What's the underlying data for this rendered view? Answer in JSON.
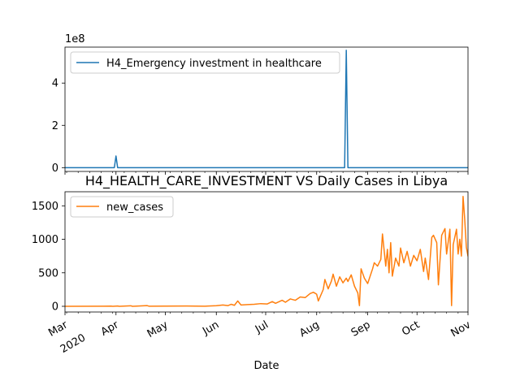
{
  "chart_data": [
    {
      "type": "line",
      "title": "",
      "xlabel": "",
      "ylabel": "",
      "offset_text": "1e8",
      "ylim": [
        -18000000,
        570000000
      ],
      "yticks": [
        0,
        2,
        4
      ],
      "ytick_labels": [
        "0",
        "2",
        "4"
      ],
      "legend": {
        "position": "top-left"
      },
      "grid": false,
      "series": [
        {
          "name": "H4_Emergency investment in healthcare",
          "color": "#1f77b4",
          "points": [
            [
              "2020-03-01",
              0
            ],
            [
              "2020-03-31",
              0
            ],
            [
              "2020-04-01",
              55000000
            ],
            [
              "2020-04-02",
              0
            ],
            [
              "2020-08-18",
              0
            ],
            [
              "2020-08-19",
              555000000
            ],
            [
              "2020-08-20",
              0
            ],
            [
              "2020-11-01",
              0
            ]
          ]
        }
      ]
    },
    {
      "type": "line",
      "title": "H4_HEALTH_CARE_INVESTMENT VS Daily Cases in Libya",
      "xlabel": "Date",
      "ylabel": "",
      "ylim": [
        -85,
        1710
      ],
      "xlim": [
        "2020-03-01",
        "2020-11-01"
      ],
      "yticks": [
        0,
        500,
        1000,
        1500
      ],
      "ytick_labels": [
        "0",
        "500",
        "1000",
        "1500"
      ],
      "xtick_labels": [
        {
          "date": "2020-03-01",
          "label": "Mar",
          "sub": "2020"
        },
        {
          "date": "2020-04-01",
          "label": "Apr",
          "sub": ""
        },
        {
          "date": "2020-05-01",
          "label": "May",
          "sub": ""
        },
        {
          "date": "2020-06-01",
          "label": "Jun",
          "sub": ""
        },
        {
          "date": "2020-07-01",
          "label": "Jul",
          "sub": ""
        },
        {
          "date": "2020-08-01",
          "label": "Aug",
          "sub": ""
        },
        {
          "date": "2020-09-01",
          "label": "Sep",
          "sub": ""
        },
        {
          "date": "2020-10-01",
          "label": "Oct",
          "sub": ""
        },
        {
          "date": "2020-11-01",
          "label": "Nov",
          "sub": ""
        }
      ],
      "legend": {
        "position": "top-left"
      },
      "grid": false,
      "series": [
        {
          "name": "new_cases",
          "color": "#ff7f0e",
          "points": [
            [
              "2020-03-01",
              0
            ],
            [
              "2020-03-24",
              1
            ],
            [
              "2020-03-29",
              3
            ],
            [
              "2020-03-30",
              0
            ],
            [
              "2020-04-02",
              5
            ],
            [
              "2020-04-03",
              0
            ],
            [
              "2020-04-10",
              8
            ],
            [
              "2020-04-11",
              0
            ],
            [
              "2020-04-20",
              10
            ],
            [
              "2020-04-21",
              2
            ],
            [
              "2020-05-01",
              3
            ],
            [
              "2020-05-14",
              4
            ],
            [
              "2020-05-25",
              2
            ],
            [
              "2020-06-01",
              9
            ],
            [
              "2020-06-05",
              20
            ],
            [
              "2020-06-08",
              10
            ],
            [
              "2020-06-10",
              30
            ],
            [
              "2020-06-12",
              15
            ],
            [
              "2020-06-14",
              80
            ],
            [
              "2020-06-16",
              20
            ],
            [
              "2020-06-20",
              25
            ],
            [
              "2020-06-24",
              30
            ],
            [
              "2020-06-28",
              40
            ],
            [
              "2020-07-02",
              35
            ],
            [
              "2020-07-05",
              70
            ],
            [
              "2020-07-07",
              45
            ],
            [
              "2020-07-11",
              90
            ],
            [
              "2020-07-13",
              60
            ],
            [
              "2020-07-16",
              110
            ],
            [
              "2020-07-19",
              90
            ],
            [
              "2020-07-22",
              140
            ],
            [
              "2020-07-25",
              130
            ],
            [
              "2020-07-28",
              190
            ],
            [
              "2020-07-30",
              210
            ],
            [
              "2020-08-01",
              180
            ],
            [
              "2020-08-02",
              80
            ],
            [
              "2020-08-05",
              250
            ],
            [
              "2020-08-06",
              400
            ],
            [
              "2020-08-08",
              260
            ],
            [
              "2020-08-10",
              380
            ],
            [
              "2020-08-11",
              480
            ],
            [
              "2020-08-13",
              300
            ],
            [
              "2020-08-15",
              440
            ],
            [
              "2020-08-17",
              350
            ],
            [
              "2020-08-19",
              420
            ],
            [
              "2020-08-20",
              370
            ],
            [
              "2020-08-22",
              470
            ],
            [
              "2020-08-24",
              300
            ],
            [
              "2020-08-26",
              200
            ],
            [
              "2020-08-27",
              10
            ],
            [
              "2020-08-28",
              560
            ],
            [
              "2020-08-30",
              420
            ],
            [
              "2020-09-01",
              340
            ],
            [
              "2020-09-04",
              560
            ],
            [
              "2020-09-05",
              650
            ],
            [
              "2020-09-07",
              600
            ],
            [
              "2020-09-09",
              700
            ],
            [
              "2020-09-10",
              1080
            ],
            [
              "2020-09-12",
              600
            ],
            [
              "2020-09-13",
              850
            ],
            [
              "2020-09-14",
              500
            ],
            [
              "2020-09-15",
              950
            ],
            [
              "2020-09-16",
              450
            ],
            [
              "2020-09-18",
              720
            ],
            [
              "2020-09-20",
              600
            ],
            [
              "2020-09-21",
              870
            ],
            [
              "2020-09-23",
              650
            ],
            [
              "2020-09-25",
              820
            ],
            [
              "2020-09-27",
              600
            ],
            [
              "2020-09-29",
              760
            ],
            [
              "2020-10-01",
              680
            ],
            [
              "2020-10-03",
              850
            ],
            [
              "2020-10-05",
              520
            ],
            [
              "2020-10-06",
              720
            ],
            [
              "2020-10-08",
              400
            ],
            [
              "2020-10-10",
              1030
            ],
            [
              "2020-10-11",
              1060
            ],
            [
              "2020-10-13",
              950
            ],
            [
              "2020-10-14",
              320
            ],
            [
              "2020-10-16",
              1060
            ],
            [
              "2020-10-18",
              1160
            ],
            [
              "2020-10-19",
              780
            ],
            [
              "2020-10-21",
              1150
            ],
            [
              "2020-10-22",
              10
            ],
            [
              "2020-10-23",
              920
            ],
            [
              "2020-10-25",
              1150
            ],
            [
              "2020-10-26",
              780
            ],
            [
              "2020-10-27",
              1000
            ],
            [
              "2020-10-28",
              750
            ],
            [
              "2020-10-29",
              1640
            ],
            [
              "2020-10-30",
              1300
            ],
            [
              "2020-10-31",
              880
            ],
            [
              "2020-11-01",
              750
            ],
            [
              "2020-11-02",
              920
            ],
            [
              "2020-11-03",
              880
            ],
            [
              "2020-11-04",
              960
            ],
            [
              "2020-11-05",
              470
            ]
          ]
        }
      ]
    }
  ]
}
